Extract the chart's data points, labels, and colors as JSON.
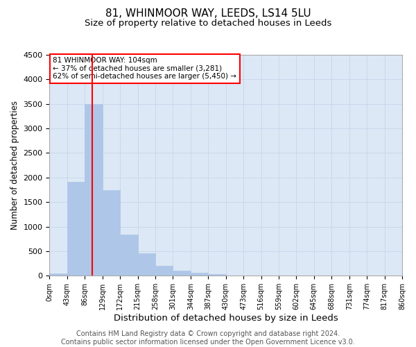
{
  "title": "81, WHINMOOR WAY, LEEDS, LS14 5LU",
  "subtitle": "Size of property relative to detached houses in Leeds",
  "xlabel": "Distribution of detached houses by size in Leeds",
  "ylabel": "Number of detached properties",
  "bin_labels": [
    "0sqm",
    "43sqm",
    "86sqm",
    "129sqm",
    "172sqm",
    "215sqm",
    "258sqm",
    "301sqm",
    "344sqm",
    "387sqm",
    "430sqm",
    "473sqm",
    "516sqm",
    "559sqm",
    "602sqm",
    "645sqm",
    "688sqm",
    "731sqm",
    "774sqm",
    "817sqm",
    "860sqm"
  ],
  "bar_values": [
    50,
    1920,
    3500,
    1750,
    840,
    460,
    200,
    110,
    65,
    40,
    0,
    0,
    0,
    0,
    0,
    0,
    0,
    0,
    0,
    0
  ],
  "bar_color": "#aec6e8",
  "bar_edgecolor": "#aec6e8",
  "vline_x": 2.42,
  "vline_color": "red",
  "annotation_text": "81 WHINMOOR WAY: 104sqm\n← 37% of detached houses are smaller (3,281)\n62% of semi-detached houses are larger (5,450) →",
  "annotation_box_color": "white",
  "annotation_box_edgecolor": "red",
  "ylim": [
    0,
    4500
  ],
  "yticks": [
    0,
    500,
    1000,
    1500,
    2000,
    2500,
    3000,
    3500,
    4000,
    4500
  ],
  "grid_color": "#c8d8ec",
  "background_color": "#dce8f5",
  "footer_line1": "Contains HM Land Registry data © Crown copyright and database right 2024.",
  "footer_line2": "Contains public sector information licensed under the Open Government Licence v3.0.",
  "title_fontsize": 11,
  "subtitle_fontsize": 9.5,
  "xlabel_fontsize": 9.5,
  "ylabel_fontsize": 8.5,
  "tick_fontsize": 8,
  "xtick_fontsize": 7,
  "footer_fontsize": 7
}
